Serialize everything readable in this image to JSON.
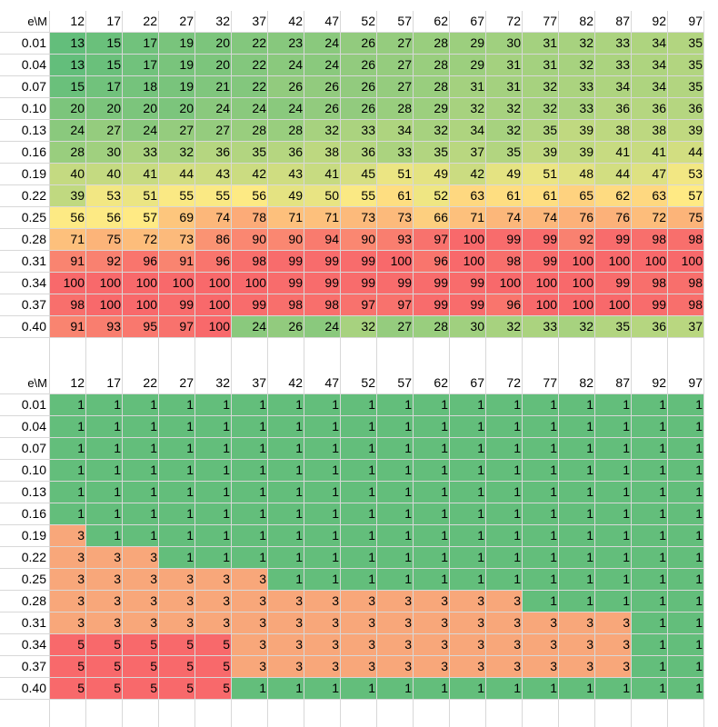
{
  "chart_data": [
    {
      "type": "heatmap",
      "corner_label": "e\\M",
      "x": [
        "12",
        "17",
        "22",
        "27",
        "32",
        "37",
        "42",
        "47",
        "52",
        "57",
        "62",
        "67",
        "72",
        "77",
        "82",
        "87",
        "92",
        "97"
      ],
      "y": [
        "0.01",
        "0.04",
        "0.07",
        "0.10",
        "0.13",
        "0.16",
        "0.19",
        "0.22",
        "0.25",
        "0.28",
        "0.31",
        "0.34",
        "0.37",
        "0.40"
      ],
      "values": [
        [
          13,
          15,
          17,
          19,
          20,
          22,
          23,
          24,
          26,
          27,
          28,
          29,
          30,
          31,
          32,
          33,
          34,
          35
        ],
        [
          13,
          15,
          17,
          19,
          20,
          22,
          24,
          24,
          26,
          27,
          28,
          29,
          31,
          31,
          32,
          33,
          34,
          35
        ],
        [
          15,
          17,
          18,
          19,
          21,
          22,
          26,
          26,
          26,
          27,
          28,
          31,
          31,
          32,
          33,
          34,
          34,
          35
        ],
        [
          20,
          20,
          20,
          20,
          24,
          24,
          24,
          26,
          26,
          28,
          29,
          32,
          32,
          32,
          33,
          36,
          36,
          36
        ],
        [
          24,
          27,
          24,
          27,
          27,
          28,
          28,
          32,
          33,
          34,
          32,
          34,
          32,
          35,
          39,
          38,
          38,
          39
        ],
        [
          28,
          30,
          33,
          32,
          36,
          35,
          36,
          38,
          36,
          33,
          35,
          37,
          35,
          39,
          39,
          41,
          41,
          44
        ],
        [
          40,
          40,
          41,
          44,
          43,
          42,
          43,
          41,
          45,
          51,
          49,
          42,
          49,
          51,
          48,
          44,
          47,
          53
        ],
        [
          39,
          53,
          51,
          55,
          55,
          56,
          49,
          50,
          55,
          61,
          52,
          63,
          61,
          61,
          65,
          62,
          63,
          57
        ],
        [
          56,
          56,
          57,
          69,
          74,
          78,
          71,
          71,
          73,
          73,
          66,
          71,
          74,
          74,
          76,
          76,
          72,
          75
        ],
        [
          71,
          75,
          72,
          73,
          86,
          90,
          90,
          94,
          90,
          93,
          97,
          100,
          99,
          99,
          92,
          99,
          98,
          98
        ],
        [
          91,
          92,
          96,
          91,
          96,
          98,
          99,
          99,
          99,
          100,
          96,
          100,
          98,
          99,
          100,
          100,
          100,
          100
        ],
        [
          100,
          100,
          100,
          100,
          100,
          100,
          99,
          99,
          99,
          99,
          99,
          99,
          100,
          100,
          100,
          99,
          98,
          98
        ],
        [
          98,
          100,
          100,
          99,
          100,
          99,
          98,
          98,
          97,
          97,
          99,
          99,
          96,
          100,
          100,
          100,
          99,
          98
        ],
        [
          91,
          93,
          95,
          97,
          100,
          24,
          26,
          24,
          32,
          27,
          28,
          30,
          32,
          33,
          32,
          35,
          36,
          37
        ]
      ]
    },
    {
      "type": "heatmap",
      "corner_label": "e\\M",
      "x": [
        "12",
        "17",
        "22",
        "27",
        "32",
        "37",
        "42",
        "47",
        "52",
        "57",
        "62",
        "67",
        "72",
        "77",
        "82",
        "87",
        "92",
        "97"
      ],
      "y": [
        "0.01",
        "0.04",
        "0.07",
        "0.10",
        "0.13",
        "0.16",
        "0.19",
        "0.22",
        "0.25",
        "0.28",
        "0.31",
        "0.34",
        "0.37",
        "0.40"
      ],
      "values": [
        [
          1,
          1,
          1,
          1,
          1,
          1,
          1,
          1,
          1,
          1,
          1,
          1,
          1,
          1,
          1,
          1,
          1,
          1
        ],
        [
          1,
          1,
          1,
          1,
          1,
          1,
          1,
          1,
          1,
          1,
          1,
          1,
          1,
          1,
          1,
          1,
          1,
          1
        ],
        [
          1,
          1,
          1,
          1,
          1,
          1,
          1,
          1,
          1,
          1,
          1,
          1,
          1,
          1,
          1,
          1,
          1,
          1
        ],
        [
          1,
          1,
          1,
          1,
          1,
          1,
          1,
          1,
          1,
          1,
          1,
          1,
          1,
          1,
          1,
          1,
          1,
          1
        ],
        [
          1,
          1,
          1,
          1,
          1,
          1,
          1,
          1,
          1,
          1,
          1,
          1,
          1,
          1,
          1,
          1,
          1,
          1
        ],
        [
          1,
          1,
          1,
          1,
          1,
          1,
          1,
          1,
          1,
          1,
          1,
          1,
          1,
          1,
          1,
          1,
          1,
          1
        ],
        [
          3,
          1,
          1,
          1,
          1,
          1,
          1,
          1,
          1,
          1,
          1,
          1,
          1,
          1,
          1,
          1,
          1,
          1
        ],
        [
          3,
          3,
          3,
          1,
          1,
          1,
          1,
          1,
          1,
          1,
          1,
          1,
          1,
          1,
          1,
          1,
          1,
          1
        ],
        [
          3,
          3,
          3,
          3,
          3,
          3,
          1,
          1,
          1,
          1,
          1,
          1,
          1,
          1,
          1,
          1,
          1,
          1
        ],
        [
          3,
          3,
          3,
          3,
          3,
          3,
          3,
          3,
          3,
          3,
          3,
          3,
          3,
          1,
          1,
          1,
          1,
          1
        ],
        [
          3,
          3,
          3,
          3,
          3,
          3,
          3,
          3,
          3,
          3,
          3,
          3,
          3,
          3,
          3,
          3,
          1,
          1
        ],
        [
          5,
          5,
          5,
          5,
          5,
          3,
          3,
          3,
          3,
          3,
          3,
          3,
          3,
          3,
          3,
          3,
          1,
          1
        ],
        [
          5,
          5,
          5,
          5,
          5,
          3,
          3,
          3,
          3,
          3,
          3,
          3,
          3,
          3,
          3,
          3,
          1,
          1
        ],
        [
          5,
          5,
          5,
          5,
          5,
          1,
          1,
          1,
          1,
          1,
          1,
          1,
          1,
          1,
          1,
          1,
          1,
          1
        ]
      ],
      "colors": {
        "1": "#63be7b",
        "3": "#f8a77a",
        "5": "#f8696b"
      }
    }
  ],
  "color_scale": {
    "low": "#63be7b",
    "mid": "#ffeb84",
    "high": "#f8696b"
  }
}
